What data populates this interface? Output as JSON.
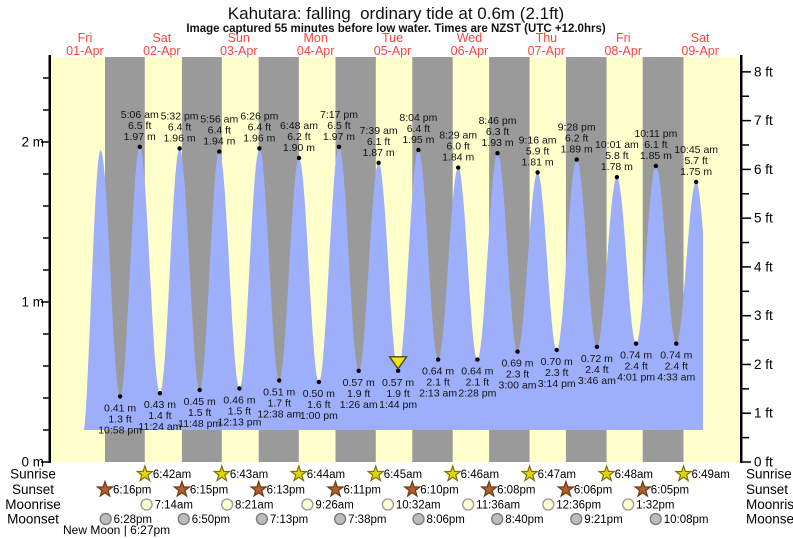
{
  "chart_data": {
    "type": "area",
    "title": "Kahutara: falling  ordinary tide at 0.6m (2.1ft)",
    "subtitle": "Image captured 55 minutes before low water. Times are NZST (UTC +12.0hrs)",
    "days": [
      {
        "weekday": "Fri",
        "date": "01-Apr"
      },
      {
        "weekday": "Sat",
        "date": "02-Apr"
      },
      {
        "weekday": "Sun",
        "date": "03-Apr"
      },
      {
        "weekday": "Mon",
        "date": "04-Apr"
      },
      {
        "weekday": "Tue",
        "date": "05-Apr"
      },
      {
        "weekday": "Wed",
        "date": "06-Apr"
      },
      {
        "weekday": "Thu",
        "date": "07-Apr"
      },
      {
        "weekday": "Fri",
        "date": "08-Apr"
      },
      {
        "weekday": "Sat",
        "date": "09-Apr"
      }
    ],
    "y_axis_left": {
      "unit": "m",
      "major_ticks": [
        0,
        1,
        2
      ],
      "minor_step": 0.2,
      "minor_max": 2.4
    },
    "y_axis_right": {
      "unit": "ft",
      "major_ticks": [
        0,
        1,
        2,
        3,
        4,
        5,
        6,
        7,
        8
      ],
      "minor_step": 0.5,
      "minor_max": 8
    },
    "tide_events": [
      {
        "type": "low",
        "day": 0,
        "hour": 10.9,
        "height_m": 0.1,
        "labeled": false
      },
      {
        "type": "high",
        "day": 0,
        "hour": 16.9,
        "height_m": 1.95,
        "labeled": false
      },
      {
        "type": "low",
        "day": 0,
        "time": "10:58 pm",
        "ft": "1.3 ft",
        "m": "0.41 m",
        "height_m": 0.41
      },
      {
        "type": "high",
        "day": 1,
        "time": "5:06 am",
        "ft": "6.5 ft",
        "m": "1.97 m",
        "height_m": 1.97
      },
      {
        "type": "low",
        "day": 1,
        "time": "11:24 am",
        "ft": "1.4 ft",
        "m": "0.43 m",
        "height_m": 0.43
      },
      {
        "type": "high",
        "day": 1,
        "time": "5:32 pm",
        "ft": "6.4 ft",
        "m": "1.96 m",
        "height_m": 1.96
      },
      {
        "type": "low",
        "day": 1,
        "time": "11:48 pm",
        "ft": "1.5 ft",
        "m": "0.45 m",
        "height_m": 0.45
      },
      {
        "type": "high",
        "day": 2,
        "time": "5:56 am",
        "ft": "6.4 ft",
        "m": "1.94 m",
        "height_m": 1.94
      },
      {
        "type": "low",
        "day": 2,
        "time": "12:13 pm",
        "ft": "1.5 ft",
        "m": "0.46 m",
        "height_m": 0.46
      },
      {
        "type": "high",
        "day": 2,
        "time": "6:26 pm",
        "ft": "6.4 ft",
        "m": "1.96 m",
        "height_m": 1.96
      },
      {
        "type": "low",
        "day": 3,
        "time": "12:38 am",
        "ft": "1.7 ft",
        "m": "0.51 m",
        "height_m": 0.51
      },
      {
        "type": "high",
        "day": 3,
        "time": "6:48 am",
        "ft": "6.2 ft",
        "m": "1.90 m",
        "height_m": 1.9
      },
      {
        "type": "low",
        "day": 3,
        "time": "1:00 pm",
        "ft": "1.6 ft",
        "m": "0.50 m",
        "height_m": 0.5
      },
      {
        "type": "high",
        "day": 3,
        "time": "7:17 pm",
        "ft": "6.5 ft",
        "m": "1.97 m",
        "height_m": 1.97
      },
      {
        "type": "low",
        "day": 4,
        "time": "1:26 am",
        "ft": "1.9 ft",
        "m": "0.57 m",
        "height_m": 0.57
      },
      {
        "type": "high",
        "day": 4,
        "time": "7:39 am",
        "ft": "6.1 ft",
        "m": "1.87 m",
        "height_m": 1.87
      },
      {
        "type": "low",
        "day": 4,
        "time": "1:44 pm",
        "ft": "1.9 ft",
        "m": "0.57 m",
        "height_m": 0.57
      },
      {
        "type": "high",
        "day": 4,
        "time": "8:04 pm",
        "ft": "6.4 ft",
        "m": "1.95 m",
        "height_m": 1.95
      },
      {
        "type": "low",
        "day": 5,
        "time": "2:13 am",
        "ft": "2.1 ft",
        "m": "0.64 m",
        "height_m": 0.64
      },
      {
        "type": "high",
        "day": 5,
        "time": "8:29 am",
        "ft": "6.0 ft",
        "m": "1.84 m",
        "height_m": 1.84
      },
      {
        "type": "low",
        "day": 5,
        "time": "2:28 pm",
        "ft": "2.1 ft",
        "m": "0.64 m",
        "height_m": 0.64
      },
      {
        "type": "high",
        "day": 5,
        "time": "8:46 pm",
        "ft": "6.3 ft",
        "m": "1.93 m",
        "height_m": 1.93
      },
      {
        "type": "low",
        "day": 6,
        "time": "3:00 am",
        "ft": "2.3 ft",
        "m": "0.69 m",
        "height_m": 0.69
      },
      {
        "type": "high",
        "day": 6,
        "time": "9:16 am",
        "ft": "5.9 ft",
        "m": "1.81 m",
        "height_m": 1.81
      },
      {
        "type": "low",
        "day": 6,
        "time": "3:14 pm",
        "ft": "2.3 ft",
        "m": "0.70 m",
        "height_m": 0.7
      },
      {
        "type": "high",
        "day": 6,
        "time": "9:28 pm",
        "ft": "6.2 ft",
        "m": "1.89 m",
        "height_m": 1.89
      },
      {
        "type": "low",
        "day": 7,
        "time": "3:46 am",
        "ft": "2.4 ft",
        "m": "0.72 m",
        "height_m": 0.72
      },
      {
        "type": "high",
        "day": 7,
        "time": "10:01 am",
        "ft": "5.8 ft",
        "m": "1.78 m",
        "height_m": 1.78
      },
      {
        "type": "low",
        "day": 7,
        "time": "4:01 pm",
        "ft": "2.4 ft",
        "m": "0.74 m",
        "height_m": 0.74
      },
      {
        "type": "high",
        "day": 7,
        "time": "10:11 pm",
        "ft": "6.1 ft",
        "m": "1.85 m",
        "height_m": 1.85
      },
      {
        "type": "low",
        "day": 8,
        "time": "4:33 am",
        "ft": "2.4 ft",
        "m": "0.74 m",
        "height_m": 0.74
      },
      {
        "type": "high",
        "day": 8,
        "time": "10:45 am",
        "ft": "5.7 ft",
        "m": "1.75 m",
        "height_m": 1.75
      },
      {
        "type": "low",
        "day": 8,
        "hour": 17.0,
        "height_m": 0.55,
        "labeled": false
      }
    ],
    "current_marker": {
      "event_index": 16
    },
    "sun_moon": {
      "rows": [
        {
          "label": "Sunrise",
          "icon": "sunrise-star",
          "events": [
            {
              "day": 1,
              "time": "6:42am"
            },
            {
              "day": 2,
              "time": "6:43am"
            },
            {
              "day": 3,
              "time": "6:44am"
            },
            {
              "day": 4,
              "time": "6:45am"
            },
            {
              "day": 5,
              "time": "6:46am"
            },
            {
              "day": 6,
              "time": "6:47am"
            },
            {
              "day": 7,
              "time": "6:48am"
            },
            {
              "day": 8,
              "time": "6:49am"
            }
          ]
        },
        {
          "label": "Sunset",
          "icon": "sunset-star",
          "events": [
            {
              "day": 0,
              "time": "6:16pm"
            },
            {
              "day": 1,
              "time": "6:15pm"
            },
            {
              "day": 2,
              "time": "6:13pm"
            },
            {
              "day": 3,
              "time": "6:11pm"
            },
            {
              "day": 4,
              "time": "6:10pm"
            },
            {
              "day": 5,
              "time": "6:08pm"
            },
            {
              "day": 6,
              "time": "6:06pm"
            },
            {
              "day": 7,
              "time": "6:05pm"
            }
          ]
        },
        {
          "label": "Moonrise",
          "icon": "moonrise-circle",
          "events": [
            {
              "day": 1,
              "time": "7:14am"
            },
            {
              "day": 2,
              "time": "8:21am"
            },
            {
              "day": 3,
              "time": "9:26am"
            },
            {
              "day": 4,
              "time": "10:32am"
            },
            {
              "day": 5,
              "time": "11:36am"
            },
            {
              "day": 6,
              "time": "12:36pm"
            },
            {
              "day": 7,
              "time": "1:32pm"
            }
          ]
        },
        {
          "label": "Moonset",
          "icon": "moonset-circle",
          "events": [
            {
              "day": 0,
              "time": "6:28pm"
            },
            {
              "day": 1,
              "time": "6:50pm"
            },
            {
              "day": 2,
              "time": "7:13pm"
            },
            {
              "day": 3,
              "time": "7:38pm"
            },
            {
              "day": 4,
              "time": "8:06pm"
            },
            {
              "day": 5,
              "time": "8:40pm"
            },
            {
              "day": 6,
              "time": "9:21pm"
            },
            {
              "day": 7,
              "time": "10:08pm"
            }
          ]
        }
      ],
      "new_moon": "New Moon | 6:27pm"
    },
    "colors": {
      "day_bg": "#ffffcc",
      "night_bg": "#9a9a9a",
      "tide_fill": "#9daffa",
      "day_label_red": "#fa463c",
      "axis": "#000000",
      "annotation": "#111111",
      "sunrise_star_fill": "#ddd610",
      "sunrise_star_stroke": "#7d7200",
      "sunset_star_fill": "#b2602b",
      "sunset_star_stroke": "#6b3a14",
      "moonrise_fill": "#ffffd6",
      "moonrise_stroke": "#979797",
      "moonset_fill": "#bcbcbc",
      "moonset_stroke": "#787878",
      "marker_fill": "#f6e312",
      "marker_stroke": "#4a4a1a"
    }
  }
}
